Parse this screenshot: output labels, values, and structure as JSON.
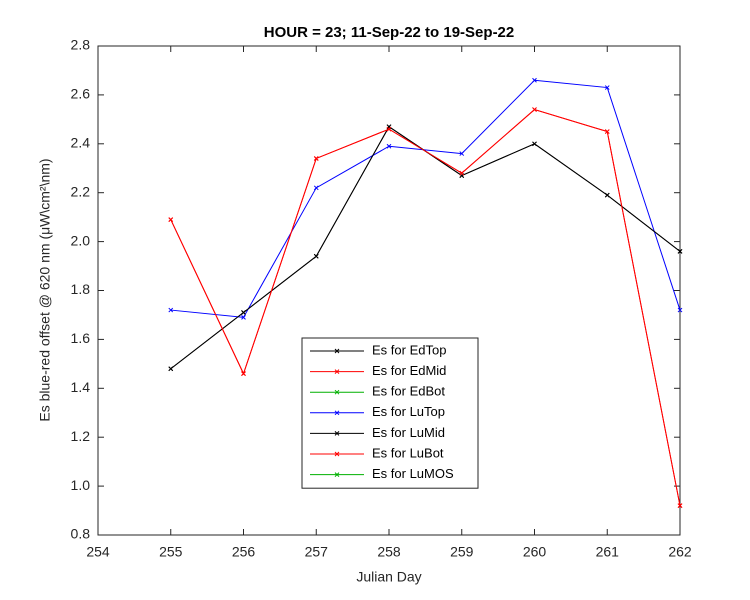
{
  "chart_data": {
    "type": "line",
    "title": "HOUR = 23; 11-Sep-22 to 19-Sep-22",
    "xlabel": "Julian Day",
    "ylabel": "Es blue-red offset @ 620 nm (μW\\cm²\\nm)",
    "x": [
      255,
      256,
      257,
      258,
      259,
      260,
      261,
      262
    ],
    "series": [
      {
        "name": "Es for EdTop",
        "color": "#000000",
        "values": [
          1.48,
          1.71,
          1.94,
          2.47,
          2.27,
          2.4,
          2.19,
          1.96
        ]
      },
      {
        "name": "Es for EdMid",
        "color": "#ff0000",
        "values": [
          2.09,
          1.46,
          2.34,
          2.46,
          2.28,
          2.54,
          2.45,
          0.92
        ]
      },
      {
        "name": "Es for EdBot",
        "color": "#00b000",
        "values": [
          null,
          null,
          null,
          null,
          null,
          null,
          null,
          null
        ]
      },
      {
        "name": "Es for LuTop",
        "color": "#0000ff",
        "values": [
          1.72,
          1.69,
          2.22,
          2.39,
          2.36,
          2.66,
          2.63,
          1.72
        ]
      },
      {
        "name": "Es for LuMid",
        "color": "#000000",
        "values": [
          1.48,
          1.71,
          1.94,
          2.47,
          2.27,
          2.4,
          2.19,
          1.96
        ]
      },
      {
        "name": "Es for LuBot",
        "color": "#ff0000",
        "values": [
          2.09,
          1.46,
          2.34,
          2.46,
          2.28,
          2.54,
          2.45,
          0.92
        ]
      },
      {
        "name": "Es for LuMOS",
        "color": "#00b000",
        "values": [
          null,
          null,
          null,
          null,
          null,
          null,
          null,
          null
        ]
      }
    ],
    "xlim": [
      254,
      262
    ],
    "xticks": [
      254,
      255,
      256,
      257,
      258,
      259,
      260,
      261,
      262
    ],
    "ylim": [
      0.8,
      2.8
    ],
    "yticks": [
      0.8,
      {
        "value": 1,
        "label": "1.0"
      },
      1.2,
      1.4,
      1.6,
      1.8,
      {
        "value": 2,
        "label": "2.0"
      },
      2.2,
      2.4,
      2.6,
      2.8
    ],
    "grid": false,
    "legend": "bottom"
  }
}
